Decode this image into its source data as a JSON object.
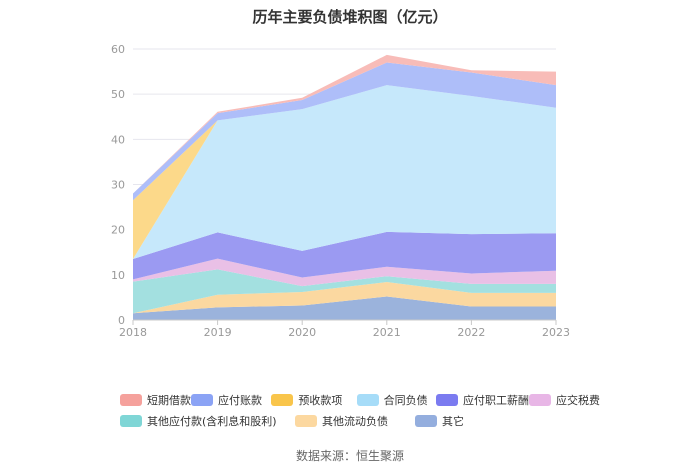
{
  "chart_data": {
    "type": "area",
    "stacked": true,
    "title": "历年主要负债堆积图（亿元）",
    "categories": [
      "2018",
      "2019",
      "2020",
      "2021",
      "2022",
      "2023"
    ],
    "ylim": [
      0,
      60
    ],
    "yticks": [
      0,
      10,
      20,
      30,
      40,
      50,
      60
    ],
    "grid": true,
    "legend_position": "bottom",
    "series": [
      {
        "name": "其它",
        "color": "#9bb3dc",
        "values": [
          1.5,
          2.8,
          3.2,
          5.2,
          3.0,
          3.0
        ]
      },
      {
        "name": "其他流动负债",
        "color": "#fbd8a0",
        "values": [
          0.0,
          2.8,
          3.0,
          3.2,
          3.0,
          3.0
        ]
      },
      {
        "name": "其他应付款(含利息和股利)",
        "color": "#a3e0e0",
        "values": [
          7.0,
          5.6,
          1.3,
          1.3,
          2.0,
          2.0
        ]
      },
      {
        "name": "应交税费",
        "color": "#e9c0e6",
        "values": [
          0.5,
          2.4,
          1.9,
          2.1,
          2.3,
          2.9
        ]
      },
      {
        "name": "应付职工薪酬",
        "color": "#9b9af2",
        "values": [
          4.5,
          5.8,
          5.9,
          7.7,
          8.7,
          8.3
        ]
      },
      {
        "name": "合同负债",
        "color": "#c6e8fb",
        "values": [
          0.0,
          24.8,
          31.4,
          32.5,
          30.6,
          27.8
        ]
      },
      {
        "name": "预收款项",
        "color": "#fcd98a",
        "values": [
          13.0,
          0.0,
          0.0,
          0.0,
          0.0,
          0.0
        ]
      },
      {
        "name": "应付账款",
        "color": "#aebef9",
        "values": [
          1.5,
          1.6,
          2.0,
          5.0,
          5.2,
          5.0
        ]
      },
      {
        "name": "短期借款",
        "color": "#f8bcb8",
        "values": [
          0.0,
          0.3,
          0.5,
          1.7,
          0.5,
          3.0
        ]
      }
    ]
  },
  "legend": [
    {
      "label": "短期借款",
      "color": "#f5a19c"
    },
    {
      "label": "应付账款",
      "color": "#8ba3f5"
    },
    {
      "label": "预收款项",
      "color": "#f9c54b"
    },
    {
      "label": "合同负债",
      "color": "#a6dcf8"
    },
    {
      "label": "应付职工薪酬",
      "color": "#7b7bf0"
    },
    {
      "label": "应交税费",
      "color": "#e8b6e6"
    },
    {
      "label": "其他应付款(含利息和股利)",
      "color": "#7fd6d6"
    },
    {
      "label": "其他流动负债",
      "color": "#fcd8a0"
    },
    {
      "label": "其它",
      "color": "#94aede"
    }
  ],
  "source": "数据来源：恒生聚源"
}
